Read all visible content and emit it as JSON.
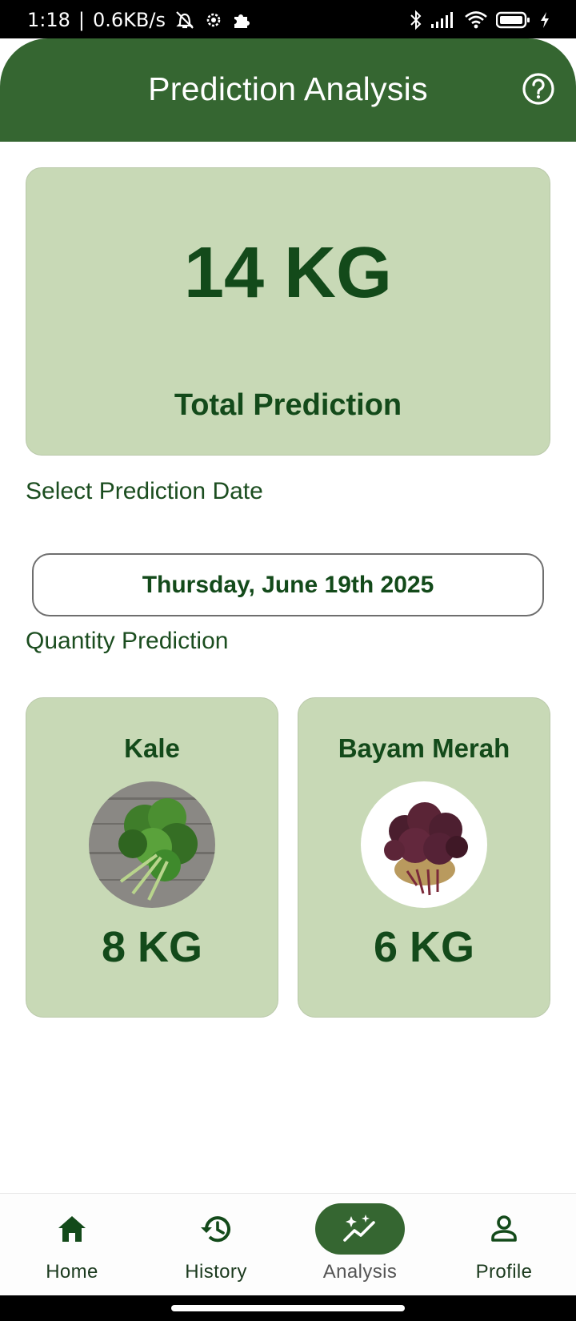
{
  "status_bar": {
    "time": "1:18",
    "speed": "0.6KB/s"
  },
  "app_bar": {
    "title": "Prediction Analysis",
    "help_icon": "help-circle-icon"
  },
  "summary": {
    "total_value": "14 KG",
    "total_label": "Total Prediction"
  },
  "date_section": {
    "label": "Select Prediction Date",
    "selected_date": "Thursday, June 19th 2025"
  },
  "quantity_section": {
    "label": "Quantity Prediction",
    "items": [
      {
        "name": "Kale",
        "quantity": "8 KG",
        "image": "kale-photo"
      },
      {
        "name": "Bayam Merah",
        "quantity": "6 KG",
        "image": "red-spinach-photo"
      }
    ]
  },
  "bottom_nav": {
    "items": [
      {
        "label": "Home",
        "icon": "home-icon",
        "active": false
      },
      {
        "label": "History",
        "icon": "history-icon",
        "active": false
      },
      {
        "label": "Analysis",
        "icon": "analysis-sparkle-icon",
        "active": true
      },
      {
        "label": "Profile",
        "icon": "profile-icon",
        "active": false
      }
    ]
  },
  "colors": {
    "primary": "#356631",
    "card": "#c8d9b6",
    "text_dark_green": "#134a1a"
  }
}
